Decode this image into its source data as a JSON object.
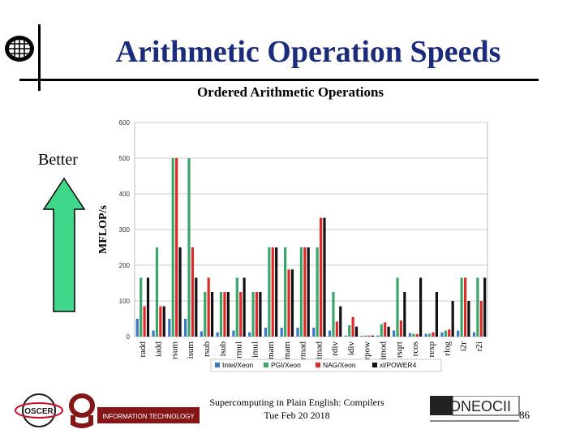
{
  "slide": {
    "title": "Arithmetic Operation Speeds",
    "better_label": "Better",
    "footer_line1": "Supercomputing in Plain English: Compilers",
    "footer_line2": "Tue Feb 20 2018",
    "page_number": "86"
  },
  "logos": {
    "information_technology": "INFORMATION TECHNOLOGY",
    "oneocii": "ONEOCII"
  },
  "colors": {
    "title": "#1b2d7a",
    "intel": "#3a78c9",
    "pgi": "#3aa66a",
    "nag": "#e0292a",
    "xlf": "#111111",
    "arrow_fill": "#3fd88a"
  },
  "chart_data": {
    "type": "bar",
    "title": "Ordered Arithmetic Operations",
    "xlabel": "",
    "ylabel": "MFLOP/s",
    "ylim": [
      0,
      600
    ],
    "yticks": [
      0,
      100,
      200,
      300,
      400,
      500,
      600
    ],
    "grid": true,
    "legend_position": "bottom",
    "categories": [
      "radd",
      "iadd",
      "rsum",
      "isum",
      "rsub",
      "isub",
      "rmul",
      "imul",
      "rmam",
      "imam",
      "rmad",
      "imad",
      "rdiv",
      "idiv",
      "rpow",
      "imod",
      "rsqrt",
      "rcos",
      "rexp",
      "rlog",
      "i2r",
      "r2i"
    ],
    "series": [
      {
        "name": "Intel/Xeon",
        "color": "#3a78c9",
        "values": [
          50,
          17,
          50,
          50,
          15,
          12,
          17,
          12,
          25,
          25,
          25,
          25,
          17,
          3,
          2,
          3,
          17,
          10,
          8,
          12,
          17,
          12
        ]
      },
      {
        "name": "PGI/Xeon",
        "color": "#3aa66a",
        "values": [
          165,
          250,
          500,
          500,
          125,
          125,
          165,
          125,
          250,
          250,
          250,
          250,
          125,
          32,
          3,
          35,
          165,
          8,
          8,
          17,
          165,
          165
        ]
      },
      {
        "name": "NAG/Xeon",
        "color": "#e0292a",
        "values": [
          85,
          85,
          500,
          250,
          165,
          125,
          125,
          125,
          250,
          188,
          250,
          333,
          42,
          55,
          3,
          40,
          45,
          7,
          12,
          20,
          165,
          100
        ]
      },
      {
        "name": "xl/POWER4",
        "color": "#111111",
        "values": [
          165,
          85,
          250,
          165,
          125,
          125,
          165,
          125,
          250,
          188,
          250,
          333,
          85,
          28,
          3,
          28,
          125,
          165,
          125,
          100,
          100,
          165
        ]
      }
    ]
  }
}
